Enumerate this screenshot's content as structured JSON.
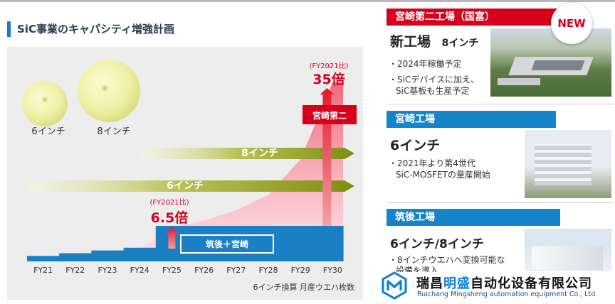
{
  "title": "SiC事業のキャパシティ増強計画",
  "chart_data": {
    "type": "area",
    "categories": [
      "FY21",
      "FY22",
      "FY23",
      "FY24",
      "FY25",
      "FY26",
      "FY27",
      "FY28",
      "FY29",
      "FY30"
    ],
    "base_steps": [
      1,
      1.5,
      2,
      2.5,
      6.5,
      6.5,
      6.5,
      6.5,
      6.5,
      6.5
    ],
    "growth_values": [
      1,
      1.5,
      2,
      2.5,
      6.5,
      8,
      10,
      13,
      20,
      35
    ],
    "wafer_sizes": [
      "6インチ",
      "8インチ"
    ],
    "arrows": [
      {
        "label": "8インチ",
        "from": "FY25"
      },
      {
        "label": "6インチ",
        "from": "FY21"
      }
    ],
    "annotations": [
      {
        "note": "(FY2021比)",
        "value": "6.5倍",
        "at": "FY25"
      },
      {
        "note": "(FY2021比)",
        "value": "35倍",
        "at": "FY30"
      }
    ],
    "callout_miyazaki2": "宮崎第二",
    "base_label": "筑後＋宮崎",
    "footnote": "6インチ換算 月産ウエハ枚数",
    "colors": {
      "bar": "#1b7fc4",
      "area": "#f7a3ad",
      "arrow": "#d91e2a",
      "olive": "#8a9b1a"
    }
  },
  "plants": [
    {
      "header": "宮崎第二工場（国富）",
      "badge": "NEW",
      "name": "新工場",
      "size": "8インチ",
      "bullets": [
        "・2024年稼働予定",
        "・SiCデバイスに加え、",
        "SiC基板も生産予定"
      ]
    },
    {
      "header": "宮崎工場",
      "size": "6インチ",
      "bullets": [
        "・2021年より第4世代",
        "SiC-MOSFETの量産開始"
      ]
    },
    {
      "header": "筑後工場",
      "size": "6インチ/8インチ",
      "bullets": [
        "・8インチウエハへ変換可能な",
        "設備を導入"
      ]
    }
  ],
  "watermark": {
    "cn_pre": "瑞昌",
    "cn_hl": "明盛",
    "cn_post": "自动化设备有限公司",
    "en": "Ruichang Mingsheng automation equipment Co., Ltd"
  }
}
